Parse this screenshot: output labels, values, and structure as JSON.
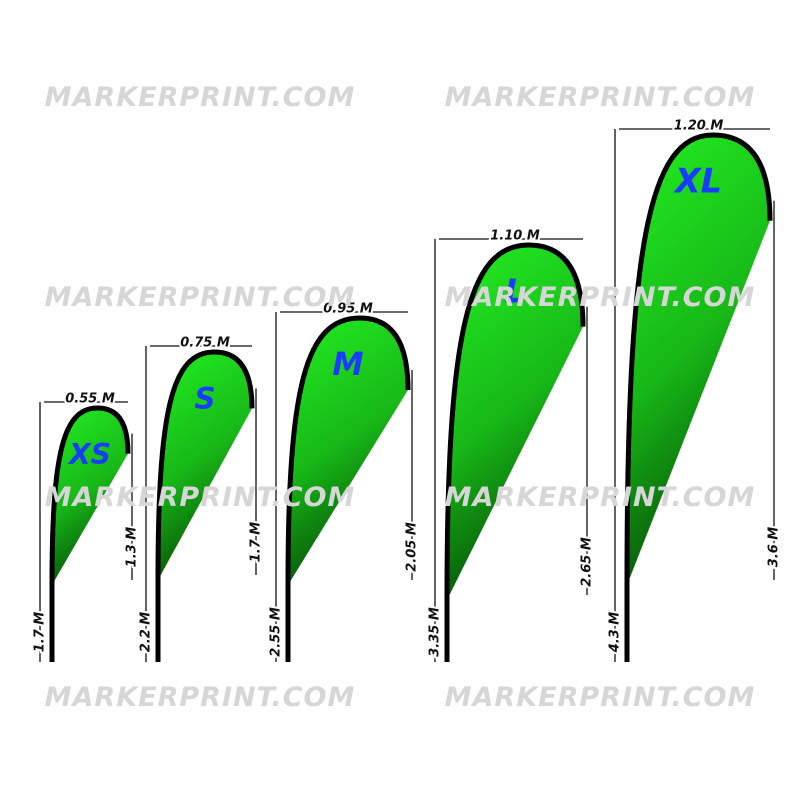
{
  "watermarks": [
    "MARKERPRINT.COM",
    "MARKERPRINT.COM",
    "MARKERPRINT.COM",
    "MARKERPRINT.COM",
    "MARKERPRINT.COM",
    "MARKERPRINT.COM",
    "MARKERPRINT.COM",
    "MARKERPRINT.COM"
  ],
  "flags": [
    {
      "label": "XS",
      "width": "0.55 M",
      "flag_height": "1.3 M",
      "total_height": "1.7 M"
    },
    {
      "label": "S",
      "width": "0.75 M",
      "flag_height": "1.7 M",
      "total_height": "2.2 M"
    },
    {
      "label": "M",
      "width": "0.95 M",
      "flag_height": "2.05 M",
      "total_height": "2.55 M"
    },
    {
      "label": "L",
      "width": "1.10 M",
      "flag_height": "2.65 M",
      "total_height": "3.35 M"
    },
    {
      "label": "XL",
      "width": "1.20 M",
      "flag_height": "3.6 M",
      "total_height": "4.3 M"
    }
  ]
}
